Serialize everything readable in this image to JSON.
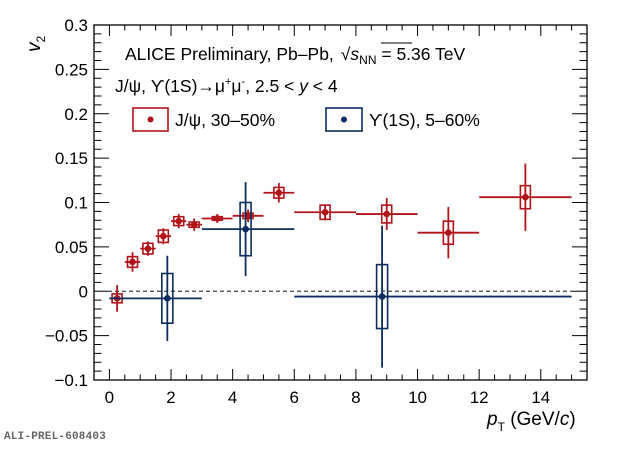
{
  "chart_data": {
    "type": "scatter",
    "title": "",
    "annotations": {
      "line1_prefix": "ALICE Preliminary, Pb–Pb,",
      "line1_sqrt_symbol": "√",
      "line1_s": "s",
      "line1_sub": "NN",
      "line1_suffix": " = 5.36 TeV",
      "line2_prefix": "J/ψ, ϒ(1S)→μ",
      "line2_sup1": "+",
      "line2_mid": "μ",
      "line2_sup2": "-",
      "line2_range": ", 2.5 < ",
      "line2_y": "y",
      "line2_end": " < 4"
    },
    "xlabel_main": "p",
    "xlabel_sub": "T",
    "xlabel_units_open": " (GeV/",
    "xlabel_units_c": "c",
    "xlabel_units_close": ")",
    "ylabel_main": "v",
    "ylabel_sub": "2",
    "xlim": [
      -0.5,
      15.5
    ],
    "ylim": [
      -0.1,
      0.3
    ],
    "x_ticks": [
      0,
      2,
      4,
      6,
      8,
      10,
      12,
      14
    ],
    "x_tick_labels": [
      "0",
      "2",
      "4",
      "6",
      "8",
      "10",
      "12",
      "14"
    ],
    "y_ticks": [
      -0.1,
      -0.05,
      0,
      0.05,
      0.1,
      0.15,
      0.2,
      0.25,
      0.3
    ],
    "y_tick_labels": [
      "−0.1",
      "−0.05",
      "0",
      "0.05",
      "0.1",
      "0.15",
      "0.2",
      "0.25",
      "0.3"
    ],
    "reference_line": {
      "y": 0,
      "style": "dashed"
    },
    "grid": false,
    "legend_placement": "top-left",
    "series": [
      {
        "name": "J/ψ, 30–50%",
        "color": "#b0141a",
        "points": [
          {
            "x": 0.25,
            "xlo": 0.0,
            "xhi": 0.5,
            "y": -0.008,
            "stat": 0.015,
            "sys": 0.005
          },
          {
            "x": 0.75,
            "xlo": 0.5,
            "xhi": 1.0,
            "y": 0.033,
            "stat": 0.011,
            "sys": 0.006
          },
          {
            "x": 1.25,
            "xlo": 1.0,
            "xhi": 1.5,
            "y": 0.048,
            "stat": 0.008,
            "sys": 0.006
          },
          {
            "x": 1.75,
            "xlo": 1.5,
            "xhi": 2.0,
            "y": 0.062,
            "stat": 0.009,
            "sys": 0.007
          },
          {
            "x": 2.25,
            "xlo": 2.0,
            "xhi": 2.5,
            "y": 0.079,
            "stat": 0.008,
            "sys": 0.005
          },
          {
            "x": 2.75,
            "xlo": 2.5,
            "xhi": 3.0,
            "y": 0.075,
            "stat": 0.007,
            "sys": 0.003
          },
          {
            "x": 3.5,
            "xlo": 3.0,
            "xhi": 4.0,
            "y": 0.082,
            "stat": 0.005,
            "sys": 0.002
          },
          {
            "x": 4.5,
            "xlo": 4.0,
            "xhi": 5.0,
            "y": 0.085,
            "stat": 0.007,
            "sys": 0.003
          },
          {
            "x": 5.5,
            "xlo": 5.0,
            "xhi": 6.0,
            "y": 0.111,
            "stat": 0.011,
            "sys": 0.006
          },
          {
            "x": 7.0,
            "xlo": 6.0,
            "xhi": 8.0,
            "y": 0.089,
            "stat": 0.009,
            "sys": 0.008
          },
          {
            "x": 9.0,
            "xlo": 8.0,
            "xhi": 10.0,
            "y": 0.087,
            "stat": 0.018,
            "sys": 0.01
          },
          {
            "x": 11.0,
            "xlo": 10.0,
            "xhi": 12.0,
            "y": 0.066,
            "stat": 0.029,
            "sys": 0.013
          },
          {
            "x": 13.5,
            "xlo": 12.0,
            "xhi": 15.0,
            "y": 0.106,
            "stat": 0.038,
            "sys": 0.013
          }
        ]
      },
      {
        "name": "ϒ(1S), 5–60%",
        "color": "#0b2d5f",
        "points": [
          {
            "x": 1.88,
            "xlo": 0.0,
            "xhi": 3.0,
            "y": -0.008,
            "stat": 0.048,
            "sys": 0.028
          },
          {
            "x": 4.42,
            "xlo": 3.0,
            "xhi": 6.0,
            "y": 0.07,
            "stat": 0.053,
            "sys": 0.03
          },
          {
            "x": 8.85,
            "xlo": 6.0,
            "xhi": 15.0,
            "y": -0.006,
            "stat": 0.08,
            "sys": 0.036
          }
        ]
      }
    ]
  },
  "footer": {
    "label": "ALI-PREL-608403"
  }
}
